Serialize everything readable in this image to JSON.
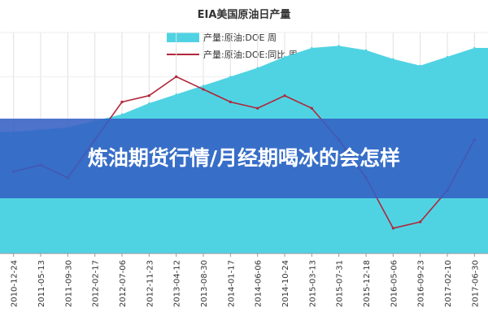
{
  "chart_data": {
    "type": "line",
    "title": "EIA美国原油日产量",
    "legend": {
      "placement": "top-center",
      "entries": [
        "产量:原油:DOE 周",
        "产量:原油:DOE:同比 周"
      ]
    },
    "grid": true,
    "x_tick_labels": [
      "2010-12-24",
      "2011-05-13",
      "2011-09-30",
      "2012-02-17",
      "2012-07-06",
      "2012-11-23",
      "2013-04-12",
      "2013-08-30",
      "2014-01-17",
      "2014-06-06",
      "2014-10-24",
      "2015-03-13",
      "2015-07-31",
      "2015-12-18",
      "2016-05-06",
      "2016-09-23",
      "2017-02-10",
      "2017-06-30"
    ],
    "series": [
      {
        "name": "产量:原油:DOE 周",
        "type": "area",
        "color": "#4fd3e3",
        "x": [
          "2010-12-24",
          "2011-05-13",
          "2011-09-30",
          "2012-02-17",
          "2012-07-06",
          "2012-11-23",
          "2013-04-12",
          "2013-08-30",
          "2014-01-17",
          "2014-06-06",
          "2014-10-24",
          "2015-03-13",
          "2015-07-31",
          "2015-12-18",
          "2016-05-06",
          "2016-09-23",
          "2017-02-10",
          "2017-06-30"
        ],
        "values": [
          5.5,
          5.6,
          5.7,
          6.0,
          6.3,
          6.8,
          7.2,
          7.6,
          8.0,
          8.4,
          8.9,
          9.3,
          9.4,
          9.2,
          8.8,
          8.5,
          8.9,
          9.3
        ]
      },
      {
        "name": "产量:原油:DOE:同比 周",
        "type": "line",
        "color": "#b0273a",
        "x": [
          "2010-12-24",
          "2011-05-13",
          "2011-09-30",
          "2012-02-17",
          "2012-07-06",
          "2012-11-23",
          "2013-04-12",
          "2013-08-30",
          "2014-01-17",
          "2014-06-06",
          "2014-10-24",
          "2015-03-13",
          "2015-07-31",
          "2015-12-18",
          "2016-05-06",
          "2016-09-23",
          "2017-02-10",
          "2017-06-30"
        ],
        "values": [
          3,
          4,
          2,
          8,
          14,
          15,
          18,
          16,
          14,
          13,
          15,
          13,
          8,
          2,
          -6,
          -5,
          0,
          8
        ]
      }
    ]
  },
  "overlay": {
    "headline": "炼油期货行情/月经期喝冰的会怎样"
  }
}
